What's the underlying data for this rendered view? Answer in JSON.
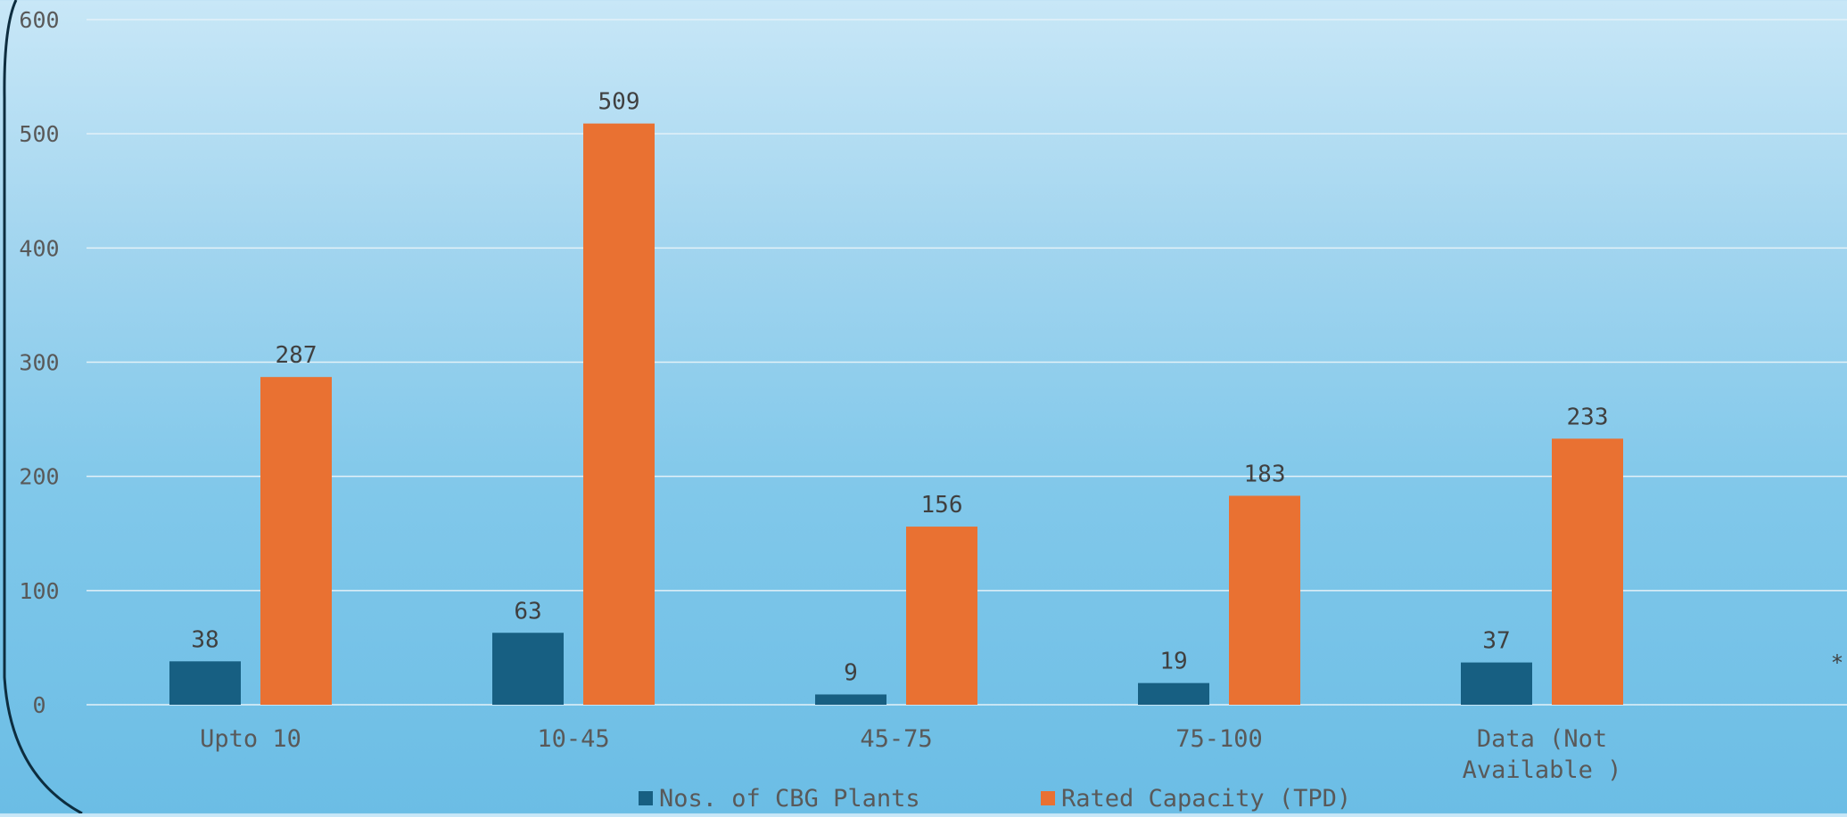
{
  "chart_data": {
    "type": "bar",
    "title": "",
    "xlabel": "",
    "ylabel": "",
    "categories": [
      "Upto 10",
      "10-45",
      "45-75",
      "75-100",
      "Data (Not Available )"
    ],
    "category_lines": [
      [
        "Upto 10"
      ],
      [
        "10-45"
      ],
      [
        "45-75"
      ],
      [
        "75-100"
      ],
      [
        "Data (Not",
        "Available )"
      ]
    ],
    "series": [
      {
        "name": "Nos. of CBG Plants",
        "values": [
          38,
          63,
          9,
          19,
          37
        ],
        "color": "#175f82"
      },
      {
        "name": "Rated Capacity (TPD)",
        "values": [
          287,
          509,
          156,
          183,
          233
        ],
        "color": "#e97132"
      }
    ],
    "ylim": [
      0,
      600
    ],
    "yticks": [
      0,
      100,
      200,
      300,
      400,
      500,
      600
    ],
    "grid": true,
    "data_labels": true,
    "legend_position": "bottom",
    "annotation": "*"
  },
  "colors": {
    "grid": "#e3f1f8",
    "axis_text": "#595959",
    "label_text": "#404040",
    "border": "#0d2d3f"
  }
}
